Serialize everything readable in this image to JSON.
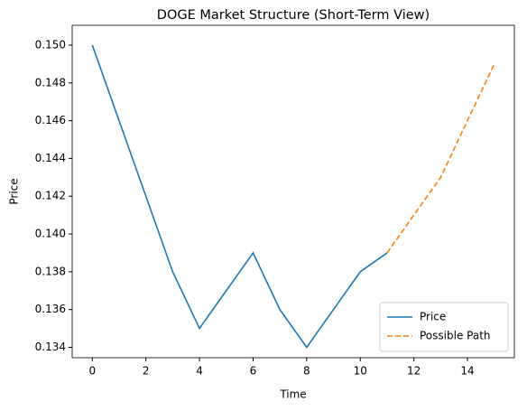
{
  "chart_data": {
    "type": "line",
    "title": "DOGE Market Structure (Short-Term View)",
    "x_label": "Time",
    "y_label": "Price",
    "series": [
      {
        "name": "Price",
        "color": "#1f77b4",
        "dash": false,
        "x": [
          0,
          1,
          2,
          3,
          4,
          5,
          6,
          7,
          8,
          9,
          10,
          11
        ],
        "values": [
          0.15,
          0.146,
          0.142,
          0.138,
          0.135,
          0.137,
          0.139,
          0.136,
          0.134,
          0.136,
          0.138,
          0.139
        ]
      },
      {
        "name": "Possible Path",
        "color": "#ff7f0e",
        "dash": true,
        "x": [
          11,
          12,
          13,
          14,
          15
        ],
        "values": [
          0.139,
          0.141,
          0.143,
          0.146,
          0.149
        ]
      }
    ],
    "xlim": [
      -0.75,
      15.75
    ],
    "xticks": [
      0,
      2,
      4,
      6,
      8,
      10,
      12,
      14
    ],
    "ylim": [
      0.13345,
      0.15105
    ],
    "yticks": [
      {
        "value": 0.134,
        "label": "0.134"
      },
      {
        "value": 0.136,
        "label": "0.136"
      },
      {
        "value": 0.138,
        "label": "0.138"
      },
      {
        "value": 0.14,
        "label": "0.140"
      },
      {
        "value": 0.142,
        "label": "0.142"
      },
      {
        "value": 0.144,
        "label": "0.144"
      },
      {
        "value": 0.146,
        "label": "0.146"
      },
      {
        "value": 0.148,
        "label": "0.148"
      },
      {
        "value": 0.15,
        "label": "0.150"
      }
    ],
    "legend": "lower right",
    "grid": false
  }
}
